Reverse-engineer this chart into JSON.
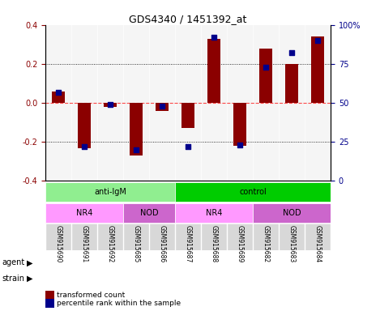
{
  "title": "GDS4340 / 1451392_at",
  "samples": [
    "GSM915690",
    "GSM915691",
    "GSM915692",
    "GSM915685",
    "GSM915686",
    "GSM915687",
    "GSM915688",
    "GSM915689",
    "GSM915682",
    "GSM915683",
    "GSM915684"
  ],
  "transformed_count": [
    0.06,
    -0.23,
    -0.02,
    -0.27,
    -0.04,
    -0.13,
    0.33,
    -0.22,
    0.28,
    0.2,
    0.34
  ],
  "percentile_rank": [
    57,
    22,
    49,
    20,
    48,
    22,
    92,
    23,
    73,
    82,
    90
  ],
  "bar_color": "#8B0000",
  "dot_color": "#00008B",
  "ylim_left": [
    -0.4,
    0.4
  ],
  "ylim_right": [
    0,
    100
  ],
  "yticks_left": [
    -0.4,
    -0.2,
    0.0,
    0.2,
    0.4
  ],
  "yticks_right": [
    0,
    25,
    50,
    75,
    100
  ],
  "ytick_labels_right": [
    "0",
    "25",
    "50",
    "75",
    "100%"
  ],
  "hline_dotted": [
    0.2,
    -0.2
  ],
  "hline_dashed": 0.0,
  "agent_groups": [
    {
      "label": "anti-IgM",
      "start": 0,
      "end": 5,
      "color": "#90EE90"
    },
    {
      "label": "control",
      "start": 5,
      "end": 11,
      "color": "#00CC00"
    }
  ],
  "strain_groups": [
    {
      "label": "NR4",
      "start": 0,
      "end": 3,
      "color": "#FF99FF"
    },
    {
      "label": "NOD",
      "start": 3,
      "end": 5,
      "color": "#CC66CC"
    },
    {
      "label": "NR4",
      "start": 5,
      "end": 8,
      "color": "#FF99FF"
    },
    {
      "label": "NOD",
      "start": 8,
      "end": 11,
      "color": "#CC66CC"
    }
  ],
  "agent_label": "agent",
  "strain_label": "strain",
  "legend_items": [
    {
      "label": "transformed count",
      "color": "#8B0000"
    },
    {
      "label": "percentile rank within the sample",
      "color": "#00008B"
    }
  ],
  "bg_color": "#FFFFFF",
  "plot_bg_color": "#F5F5F5"
}
